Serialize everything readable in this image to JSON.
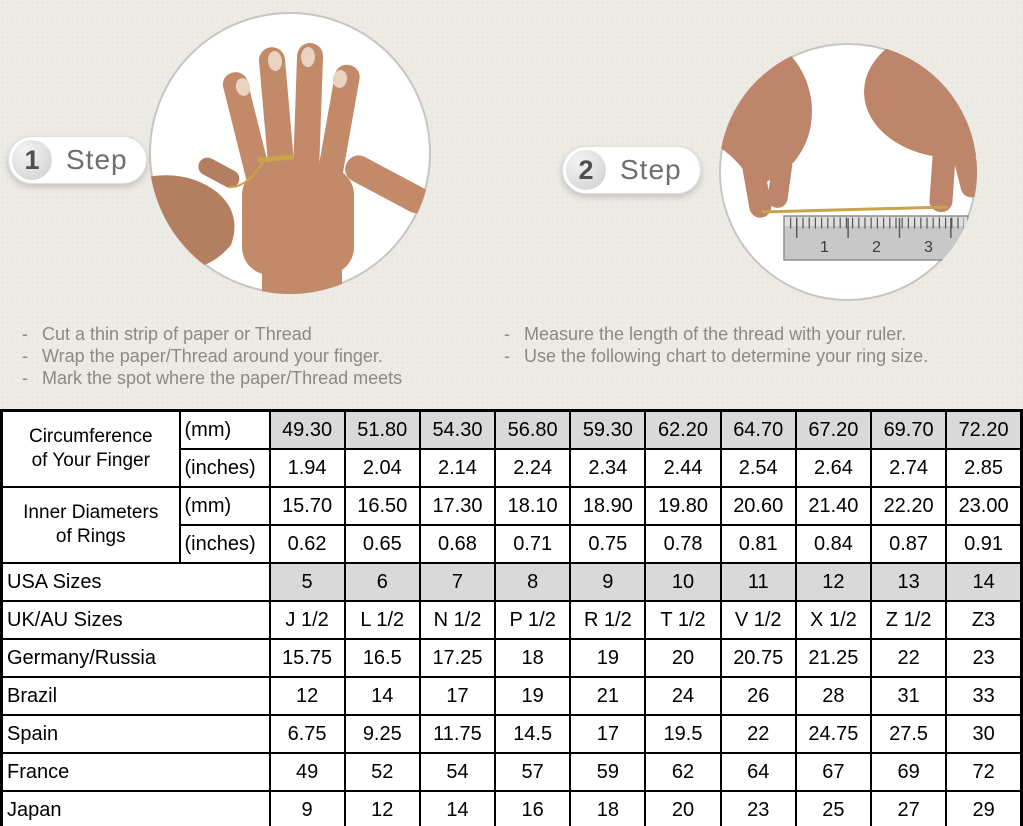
{
  "bullet": "-",
  "colors": {
    "background": "#edebe6",
    "table_shaded_cell": "#d9d9d9",
    "table_border": "#000000",
    "thread_gold": "#c9a44c",
    "badge_text": "#6e6e6e"
  },
  "steps": [
    {
      "number": "1",
      "label": "Step",
      "image": "hand-with-thread-wrapped-around-finger",
      "instructions": [
        "Cut a thin strip of paper or Thread",
        "Wrap the paper/Thread around your finger.",
        "Mark the spot where the paper/Thread meets"
      ]
    },
    {
      "number": "2",
      "label": "Step",
      "image": "hands-measuring-thread-with-ruler",
      "ruler_numbers": [
        "1",
        "2",
        "3"
      ],
      "instructions": [
        "Measure the length of the thread with your ruler.",
        "Use the following chart to determine your ring size."
      ]
    }
  ],
  "table": {
    "rows": [
      {
        "label": "Circumference\nof Your Finger",
        "label_rowspan": 2,
        "label_center": true,
        "unit": "(mm)",
        "shaded": true,
        "values": [
          "49.30",
          "51.80",
          "54.30",
          "56.80",
          "59.30",
          "62.20",
          "64.70",
          "67.20",
          "69.70",
          "72.20"
        ]
      },
      {
        "unit": "(inches)",
        "values": [
          "1.94",
          "2.04",
          "2.14",
          "2.24",
          "2.34",
          "2.44",
          "2.54",
          "2.64",
          "2.74",
          "2.85"
        ]
      },
      {
        "label": "Inner Diameters\nof Rings",
        "label_rowspan": 2,
        "label_center": true,
        "unit": "(mm)",
        "values": [
          "15.70",
          "16.50",
          "17.30",
          "18.10",
          "18.90",
          "19.80",
          "20.60",
          "21.40",
          "22.20",
          "23.00"
        ]
      },
      {
        "unit": "(inches)",
        "values": [
          "0.62",
          "0.65",
          "0.68",
          "0.71",
          "0.75",
          "0.78",
          "0.81",
          "0.84",
          "0.87",
          "0.91"
        ]
      },
      {
        "label": "USA Sizes",
        "label_colspan": 2,
        "shaded": true,
        "values": [
          "5",
          "6",
          "7",
          "8",
          "9",
          "10",
          "11",
          "12",
          "13",
          "14"
        ]
      },
      {
        "label": "UK/AU Sizes",
        "label_colspan": 2,
        "values": [
          "J 1/2",
          "L 1/2",
          "N 1/2",
          "P 1/2",
          "R 1/2",
          "T 1/2",
          "V 1/2",
          "X 1/2",
          "Z 1/2",
          "Z3"
        ]
      },
      {
        "label": "Germany/Russia",
        "label_colspan": 2,
        "values": [
          "15.75",
          "16.5",
          "17.25",
          "18",
          "19",
          "20",
          "20.75",
          "21.25",
          "22",
          "23"
        ]
      },
      {
        "label": "Brazil",
        "label_colspan": 2,
        "values": [
          "12",
          "14",
          "17",
          "19",
          "21",
          "24",
          "26",
          "28",
          "31",
          "33"
        ]
      },
      {
        "label": "Spain",
        "label_colspan": 2,
        "values": [
          "6.75",
          "9.25",
          "11.75",
          "14.5",
          "17",
          "19.5",
          "22",
          "24.75",
          "27.5",
          "30"
        ]
      },
      {
        "label": "France",
        "label_colspan": 2,
        "values": [
          "49",
          "52",
          "54",
          "57",
          "59",
          "62",
          "64",
          "67",
          "69",
          "72"
        ]
      },
      {
        "label": "Japan",
        "label_colspan": 2,
        "values": [
          "9",
          "12",
          "14",
          "16",
          "18",
          "20",
          "23",
          "25",
          "27",
          "29"
        ]
      }
    ]
  }
}
